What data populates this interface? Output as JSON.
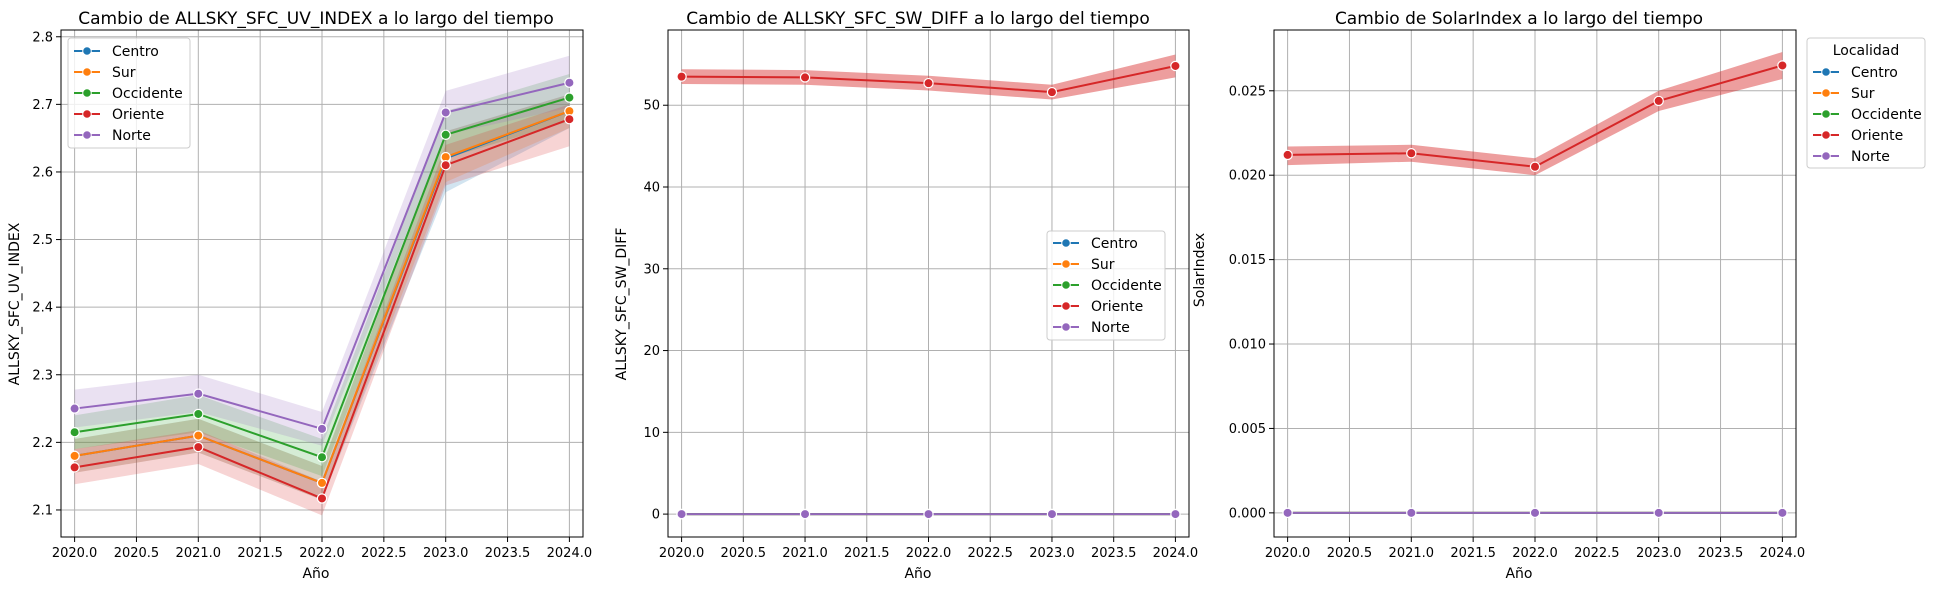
{
  "legend_title": "Localidad",
  "colors": {
    "Centro": "#1f77b4",
    "Sur": "#ff7f0e",
    "Occidente": "#2ca02c",
    "Oriente": "#d62728",
    "Norte": "#9467bd"
  },
  "chart_data": [
    {
      "type": "line",
      "title": "Cambio de ALLSKY_SFC_UV_INDEX a lo largo del tiempo",
      "xlabel": "Año",
      "ylabel": "ALLSKY_SFC_UV_INDEX",
      "x": [
        2020,
        2021,
        2022,
        2023,
        2024
      ],
      "xlim": [
        2019.89,
        2024.11
      ],
      "ylim": [
        2.06,
        2.81
      ],
      "xticks": [
        "2020.0",
        "2020.5",
        "2021.0",
        "2021.5",
        "2022.0",
        "2022.5",
        "2023.0",
        "2023.5",
        "2024.0"
      ],
      "yticks": [
        "2.1",
        "2.2",
        "2.3",
        "2.4",
        "2.5",
        "2.6",
        "2.7",
        "2.8"
      ],
      "grid": true,
      "legend_position": "upper-left",
      "legend_entries": [
        "Centro",
        "Sur",
        "Occidente",
        "Oriente",
        "Norte"
      ],
      "series": [
        {
          "name": "Centro",
          "values": [
            2.18,
            2.21,
            2.14,
            2.62,
            2.69
          ],
          "band": [
            [
              2.155,
              2.205
            ],
            [
              2.185,
              2.235
            ],
            [
              2.115,
              2.165
            ],
            [
              2.57,
              2.66
            ],
            [
              2.665,
              2.715
            ]
          ]
        },
        {
          "name": "Sur",
          "values": [
            2.18,
            2.21,
            2.14,
            2.622,
            2.69
          ],
          "band": [
            [
              2.155,
              2.205
            ],
            [
              2.185,
              2.235
            ],
            [
              2.115,
              2.165
            ],
            [
              2.585,
              2.66
            ],
            [
              2.665,
              2.715
            ]
          ]
        },
        {
          "name": "Occidente",
          "values": [
            2.215,
            2.242,
            2.178,
            2.655,
            2.71
          ],
          "band": [
            [
              2.19,
              2.24
            ],
            [
              2.215,
              2.27
            ],
            [
              2.15,
              2.205
            ],
            [
              2.62,
              2.69
            ],
            [
              2.675,
              2.745
            ]
          ]
        },
        {
          "name": "Oriente",
          "values": [
            2.163,
            2.193,
            2.117,
            2.61,
            2.678
          ],
          "band": [
            [
              2.138,
              2.19
            ],
            [
              2.168,
              2.218
            ],
            [
              2.092,
              2.142
            ],
            [
              2.58,
              2.64
            ],
            [
              2.638,
              2.7
            ]
          ]
        },
        {
          "name": "Norte",
          "values": [
            2.25,
            2.272,
            2.22,
            2.688,
            2.732
          ],
          "band": [
            [
              2.222,
              2.278
            ],
            [
              2.245,
              2.3
            ],
            [
              2.195,
              2.245
            ],
            [
              2.655,
              2.72
            ],
            [
              2.695,
              2.772
            ]
          ]
        }
      ]
    },
    {
      "type": "line",
      "title": "Cambio de ALLSKY_SFC_SW_DIFF a lo largo del tiempo",
      "xlabel": "Año",
      "ylabel": "ALLSKY_SFC_SW_DIFF",
      "x": [
        2020,
        2021,
        2022,
        2023,
        2024
      ],
      "xlim": [
        2019.89,
        2024.11
      ],
      "ylim": [
        -2.8,
        59.2
      ],
      "xticks": [
        "2020.0",
        "2020.5",
        "2021.0",
        "2021.5",
        "2022.0",
        "2022.5",
        "2023.0",
        "2023.5",
        "2024.0"
      ],
      "yticks": [
        "0",
        "10",
        "20",
        "30",
        "40",
        "50"
      ],
      "grid": true,
      "legend_position": "center-right",
      "legend_entries": [
        "Centro",
        "Sur",
        "Occidente",
        "Oriente",
        "Norte"
      ],
      "series": [
        {
          "name": "Centro",
          "values": [
            0,
            0,
            0,
            0,
            0
          ],
          "band": null
        },
        {
          "name": "Sur",
          "values": [
            0,
            0,
            0,
            0,
            0
          ],
          "band": null
        },
        {
          "name": "Occidente",
          "values": [
            0,
            0,
            0,
            0,
            0
          ],
          "band": null
        },
        {
          "name": "Oriente",
          "values": [
            53.5,
            53.4,
            52.7,
            51.6,
            54.8
          ],
          "band": [
            [
              52.6,
              54.4
            ],
            [
              52.5,
              54.3
            ],
            [
              51.8,
              53.6
            ],
            [
              50.7,
              52.5
            ],
            [
              53.4,
              56.2
            ]
          ]
        },
        {
          "name": "Norte",
          "values": [
            0,
            0,
            0,
            0,
            0
          ],
          "band": null
        }
      ]
    },
    {
      "type": "line",
      "title": "Cambio de SolarIndex a lo largo del tiempo",
      "xlabel": "Año",
      "ylabel": "SolarIndex",
      "x": [
        2020,
        2021,
        2022,
        2023,
        2024
      ],
      "xlim": [
        2019.89,
        2024.11
      ],
      "ylim": [
        -0.00143,
        0.0286
      ],
      "xticks": [
        "2020.0",
        "2020.5",
        "2021.0",
        "2021.5",
        "2022.0",
        "2022.5",
        "2023.0",
        "2023.5",
        "2024.0"
      ],
      "yticks": [
        "0.000",
        "0.005",
        "0.010",
        "0.015",
        "0.020",
        "0.025"
      ],
      "grid": true,
      "legend_position": "outside-right",
      "legend_entries": [
        "Centro",
        "Sur",
        "Occidente",
        "Oriente",
        "Norte"
      ],
      "series": [
        {
          "name": "Centro",
          "values": [
            0,
            0,
            0,
            0,
            0
          ],
          "band": null
        },
        {
          "name": "Sur",
          "values": [
            0,
            0,
            0,
            0,
            0
          ],
          "band": null
        },
        {
          "name": "Occidente",
          "values": [
            0,
            0,
            0,
            0,
            0
          ],
          "band": null
        },
        {
          "name": "Oriente",
          "values": [
            0.0212,
            0.0213,
            0.0205,
            0.0244,
            0.0265
          ],
          "band": [
            [
              0.0206,
              0.0217
            ],
            [
              0.0208,
              0.0218
            ],
            [
              0.02,
              0.021
            ],
            [
              0.0238,
              0.025
            ],
            [
              0.0257,
              0.0273
            ]
          ]
        },
        {
          "name": "Norte",
          "values": [
            0,
            0,
            0,
            0,
            0
          ],
          "band": null
        }
      ]
    }
  ]
}
